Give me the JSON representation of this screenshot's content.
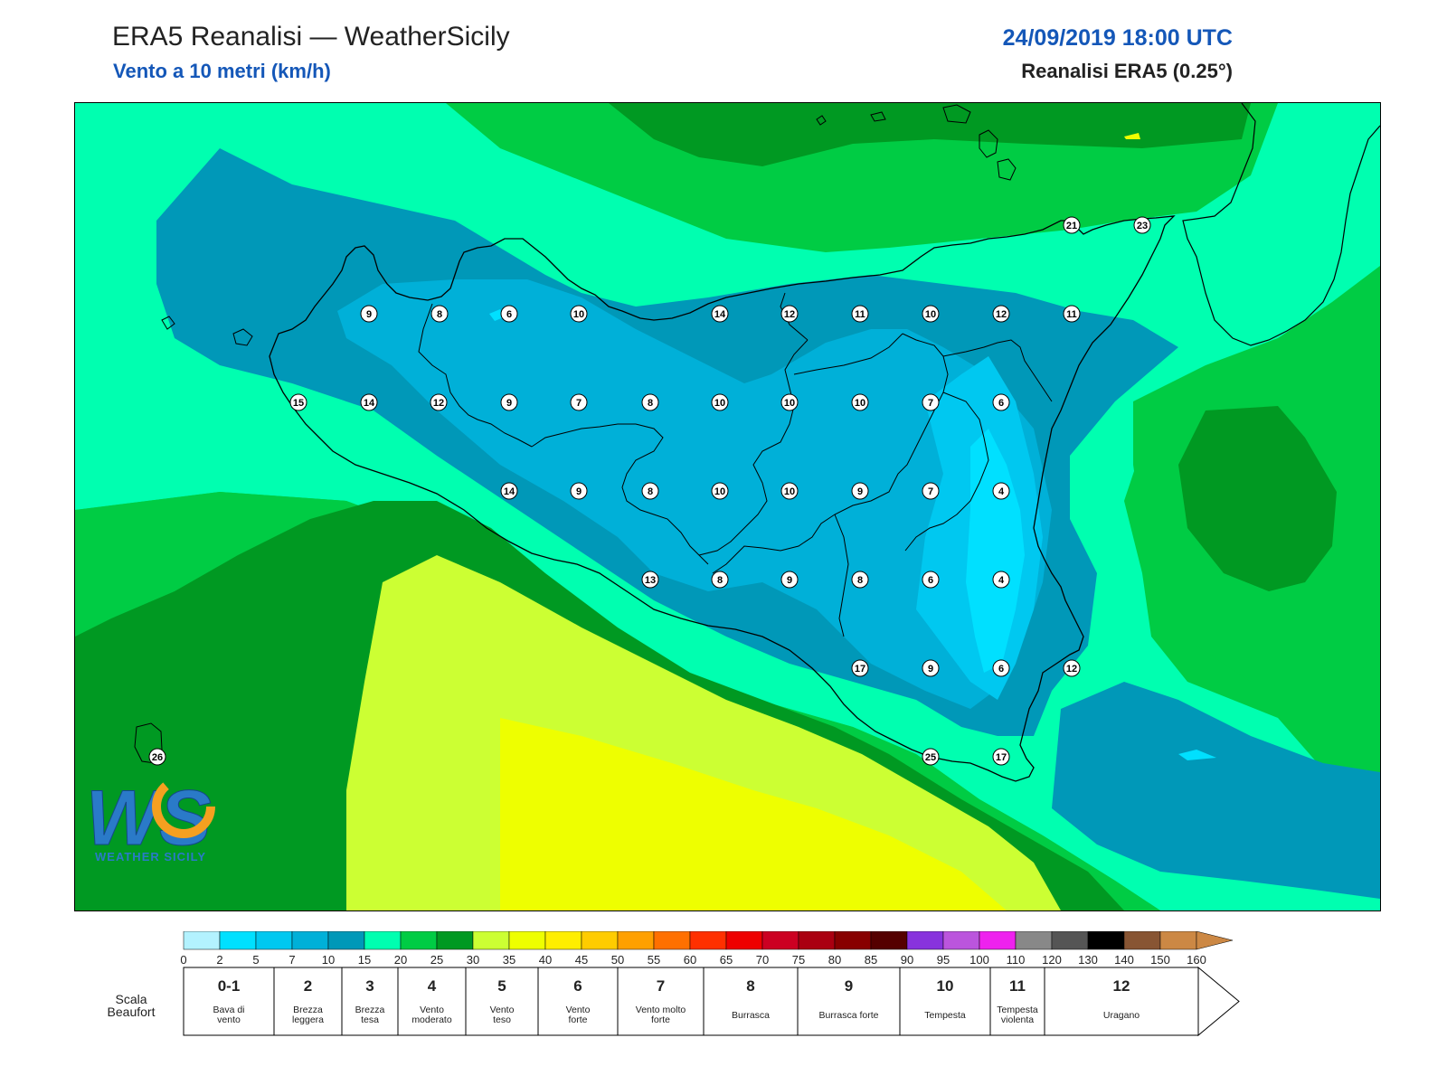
{
  "header": {
    "title": "ERA5 Reanalisi — WeatherSicily",
    "subtitle": "Vento a 10 metri (km/h)",
    "datetime": "24/09/2019 18:00 UTC",
    "source": "Reanalisi ERA5 (0.25°)"
  },
  "logo": {
    "letters": "WS",
    "brand": "WEATHER SICILY"
  },
  "stations": [
    {
      "v": "9"
    },
    {
      "v": "8"
    },
    {
      "v": "6"
    },
    {
      "v": "10"
    },
    {
      "v": "14"
    },
    {
      "v": "12"
    },
    {
      "v": "11"
    },
    {
      "v": "10"
    },
    {
      "v": "12"
    },
    {
      "v": "11"
    },
    {
      "v": "15"
    },
    {
      "v": "14"
    },
    {
      "v": "12"
    },
    {
      "v": "9"
    },
    {
      "v": "7"
    },
    {
      "v": "8"
    },
    {
      "v": "10"
    },
    {
      "v": "10"
    },
    {
      "v": "10"
    },
    {
      "v": "7"
    },
    {
      "v": "6"
    },
    {
      "v": "14"
    },
    {
      "v": "9"
    },
    {
      "v": "8"
    },
    {
      "v": "10"
    },
    {
      "v": "10"
    },
    {
      "v": "9"
    },
    {
      "v": "7"
    },
    {
      "v": "4"
    },
    {
      "v": "13"
    },
    {
      "v": "8"
    },
    {
      "v": "9"
    },
    {
      "v": "8"
    },
    {
      "v": "6"
    },
    {
      "v": "4"
    },
    {
      "v": "17"
    },
    {
      "v": "9"
    },
    {
      "v": "6"
    },
    {
      "v": "12"
    },
    {
      "v": "25"
    },
    {
      "v": "17"
    },
    {
      "v": "26"
    },
    {
      "v": "21"
    },
    {
      "v": "23"
    }
  ],
  "colorbar": {
    "ticks": [
      "0",
      "2",
      "5",
      "7",
      "10",
      "15",
      "20",
      "25",
      "30",
      "35",
      "40",
      "45",
      "50",
      "55",
      "60",
      "65",
      "70",
      "75",
      "80",
      "85",
      "90",
      "95",
      "100",
      "110",
      "120",
      "130",
      "140",
      "150",
      "160"
    ],
    "colors": [
      "#b3f2ff",
      "#00e0ff",
      "#00c8f0",
      "#00b0d8",
      "#0098b8",
      "#00ffb0",
      "#00cc44",
      "#009922",
      "#ccff33",
      "#eeff00",
      "#ffee00",
      "#ffcc00",
      "#ffa000",
      "#ff7000",
      "#ff3000",
      "#ee0000",
      "#cc0022",
      "#aa0011",
      "#880000",
      "#550000",
      "#8833dd",
      "#bb55dd",
      "#ee22ee",
      "#888888",
      "#555555",
      "#000000",
      "#885533",
      "#cc8844"
    ]
  },
  "beaufort": {
    "label": "Scala Beaufort",
    "forces": [
      {
        "n": "0-1",
        "desc": "Bava di vento"
      },
      {
        "n": "2",
        "desc": "Brezza leggera"
      },
      {
        "n": "3",
        "desc": "Brezza tesa"
      },
      {
        "n": "4",
        "desc": "Vento moderato"
      },
      {
        "n": "5",
        "desc": "Vento teso"
      },
      {
        "n": "6",
        "desc": "Vento forte"
      },
      {
        "n": "7",
        "desc": "Vento molto forte"
      },
      {
        "n": "8",
        "desc": "Burrasca"
      },
      {
        "n": "9",
        "desc": "Burrasca forte"
      },
      {
        "n": "10",
        "desc": "Tempesta"
      },
      {
        "n": "11",
        "desc": "Tempesta violenta"
      },
      {
        "n": "12",
        "desc": "Uragano"
      }
    ]
  }
}
